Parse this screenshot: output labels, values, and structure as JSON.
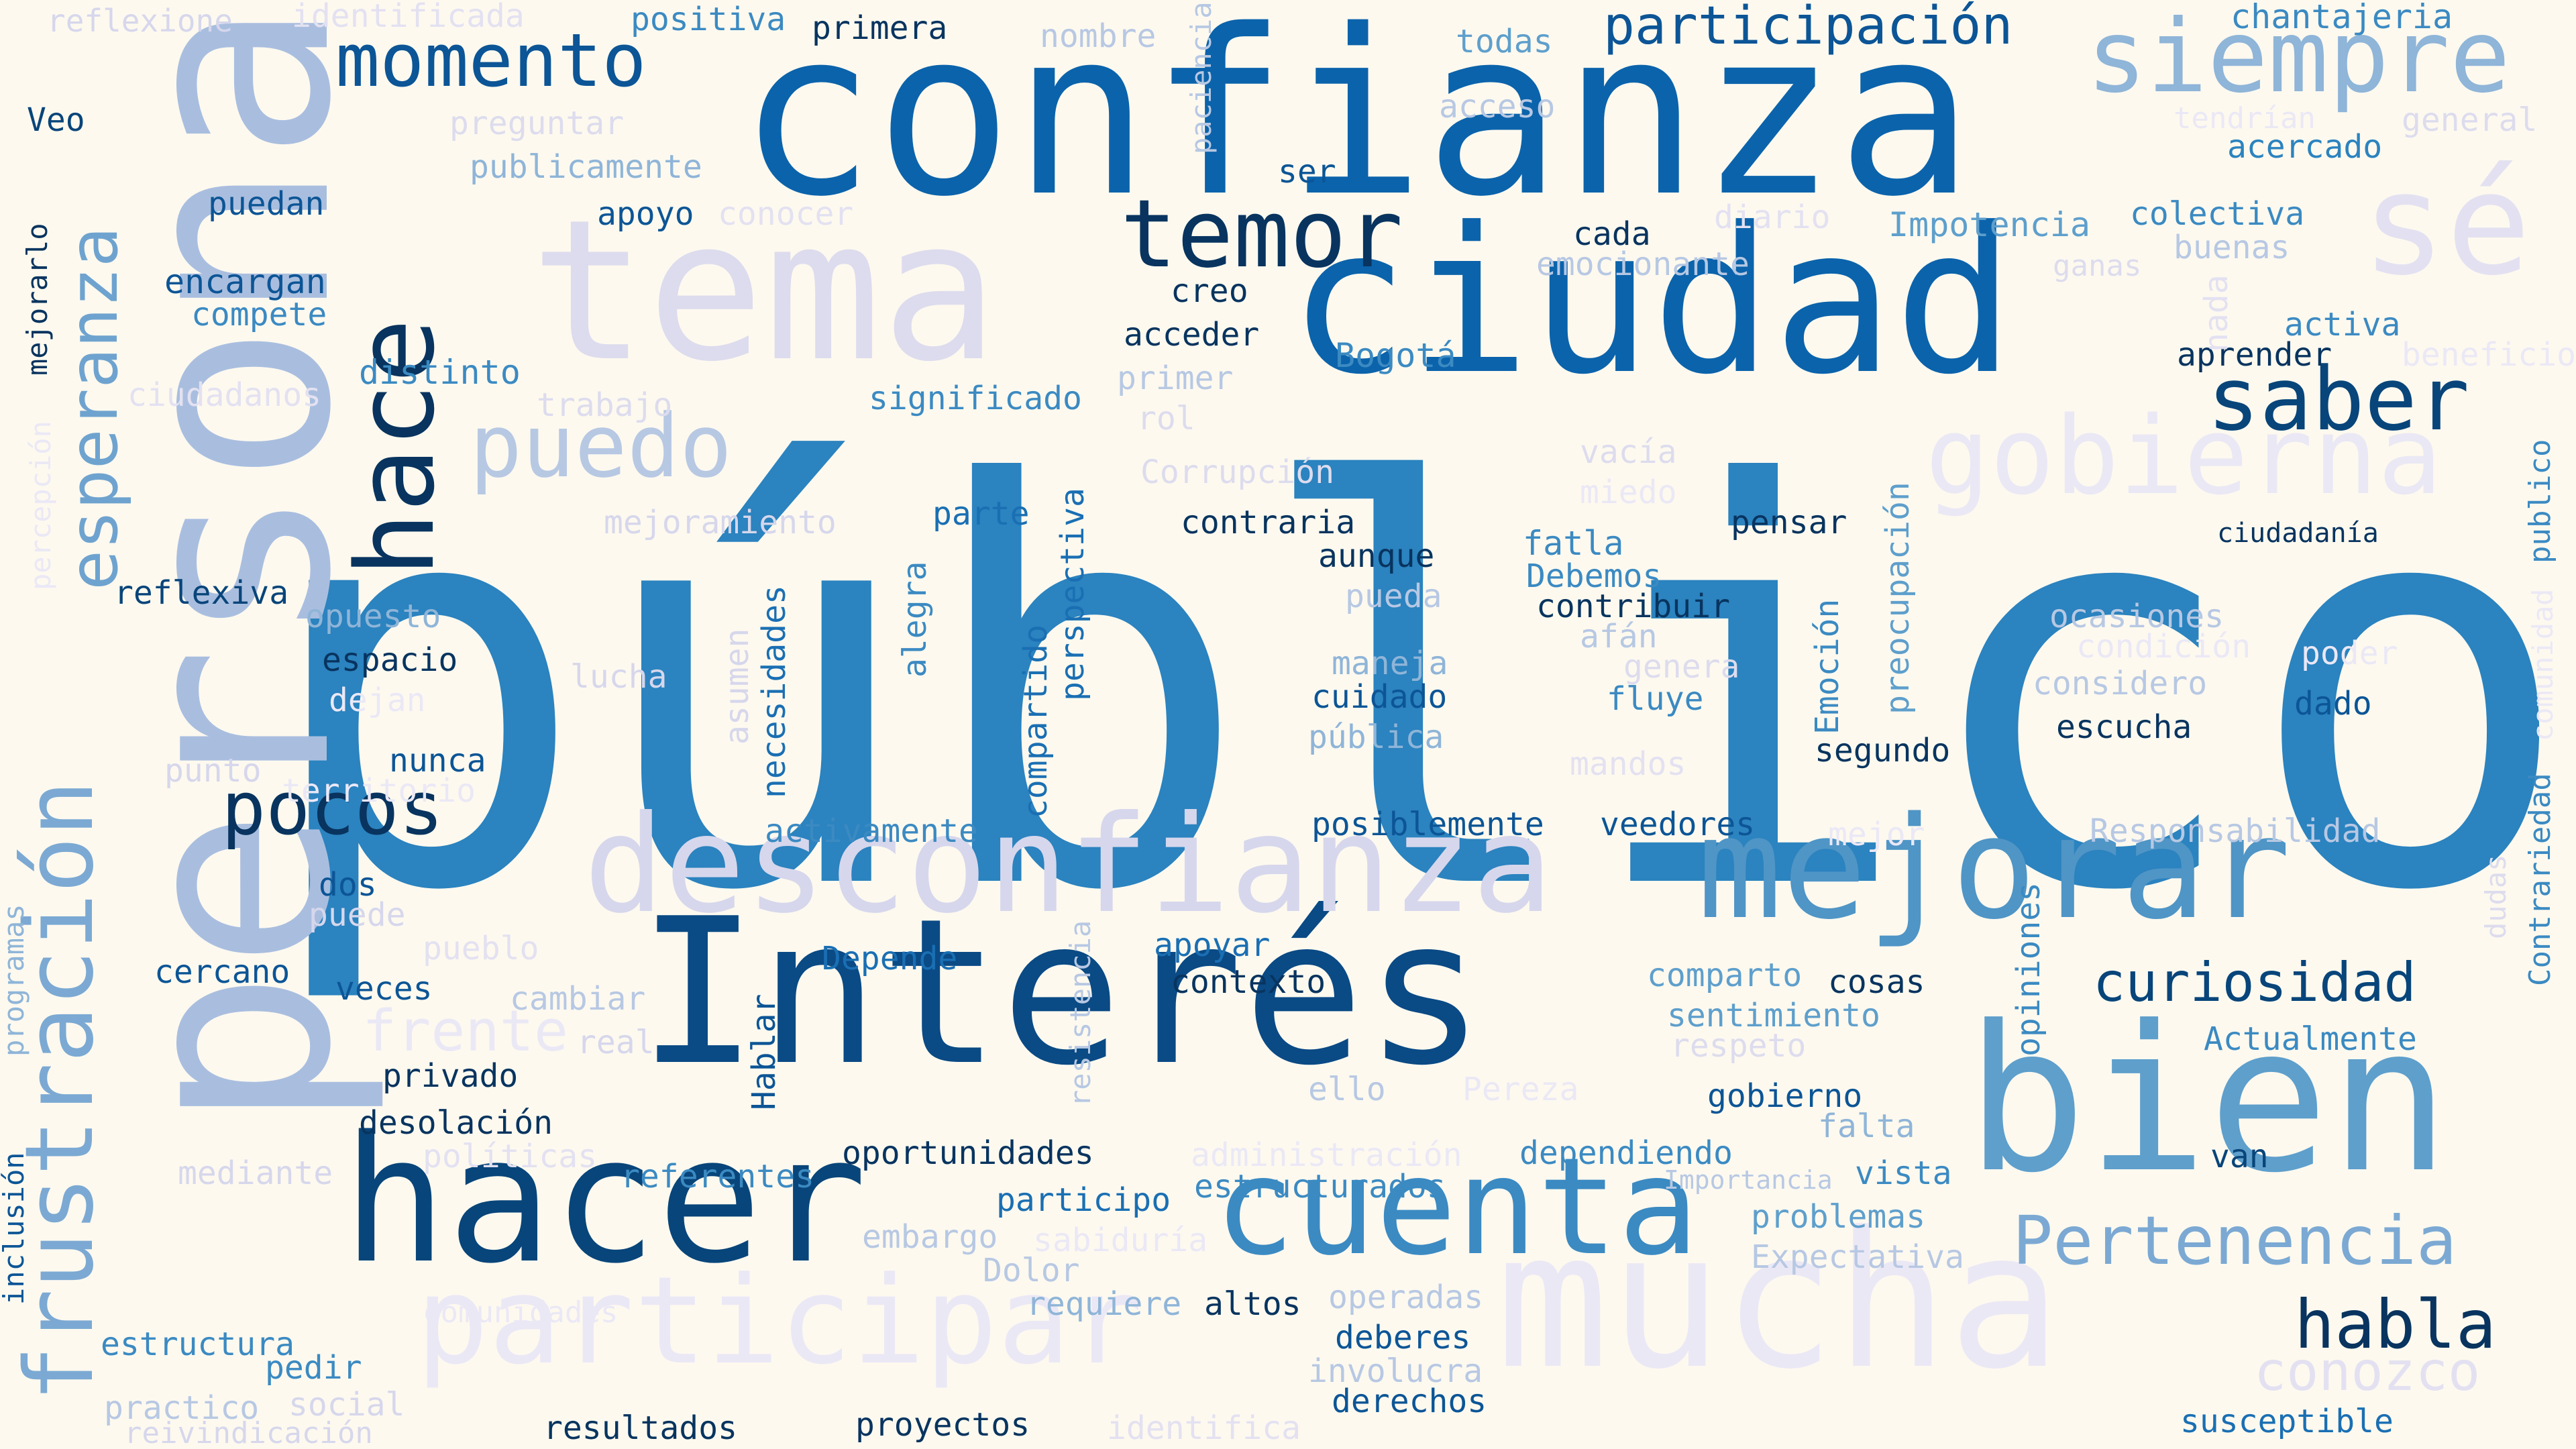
{
  "background": "#fdf9ef",
  "palette": {
    "darkest": "#08306b",
    "dark": "#08519c",
    "medium_dark": "#1a6fb3",
    "medium": "#2b83bf",
    "light_medium": "#5e9fcc",
    "light": "#8fb5d8",
    "lighter": "#aec6e2",
    "pale": "#d7dbee",
    "palest": "#ebeaf6"
  },
  "words": [
    {
      "text": "público",
      "color": "#2b83bf"
    },
    {
      "text": "persona",
      "color": "#a9bedf"
    },
    {
      "text": "confianza",
      "color": "#0b63ab"
    },
    {
      "text": "ciudad",
      "color": "#0b63ab"
    },
    {
      "text": "tema",
      "color": "#dddcee"
    },
    {
      "text": "Interés",
      "color": "#0a4a85"
    },
    {
      "text": "hacer",
      "color": "#08457a"
    },
    {
      "text": "bien",
      "color": "#5e9fcc"
    },
    {
      "text": "mucha",
      "color": "#ebe8f6"
    },
    {
      "text": "desconfianza",
      "color": "#d6d7ec"
    },
    {
      "text": "mejorar",
      "color": "#4f95c6"
    },
    {
      "text": "cuenta",
      "color": "#3b8ac2"
    },
    {
      "text": "participar",
      "color": "#ebe8f6"
    },
    {
      "text": "frustración",
      "color": "#7ba9d3"
    },
    {
      "text": "hace",
      "color": "#08345f"
    },
    {
      "text": "esperanza",
      "color": "#6fa3cf"
    },
    {
      "text": "siempre",
      "color": "#8fb5d8"
    },
    {
      "text": "sé",
      "color": "#e3e1f1"
    },
    {
      "text": "gobierna",
      "color": "#eae8f4"
    },
    {
      "text": "momento",
      "color": "#0c5596"
    },
    {
      "text": "temor",
      "color": "#08345f"
    },
    {
      "text": "puedo",
      "color": "#b7c8e3"
    },
    {
      "text": "saber",
      "color": "#08457a"
    },
    {
      "text": "pocos",
      "color": "#08345f"
    },
    {
      "text": "Pertenencia",
      "color": "#7ba9d3"
    },
    {
      "text": "curiosidad",
      "color": "#08457a"
    },
    {
      "text": "participación",
      "color": "#0c5596"
    },
    {
      "text": "habla",
      "color": "#08345f"
    },
    {
      "text": "conozco",
      "color": "#e3e1f1"
    },
    {
      "text": "frente",
      "color": "#ebe8f6"
    },
    {
      "text": "reflexione",
      "color": "#d6d7ec"
    },
    {
      "text": "identificada",
      "color": "#e3e1f1"
    },
    {
      "text": "positiva",
      "color": "#3b8ac2"
    },
    {
      "text": "primera",
      "color": "#08345f"
    },
    {
      "text": "nombre",
      "color": "#b7c8e3"
    },
    {
      "text": "paciencia",
      "color": "#b7c8e3"
    },
    {
      "text": "todas",
      "color": "#5e9fcc"
    },
    {
      "text": "chantajeria",
      "color": "#3b8ac2"
    },
    {
      "text": "Veo",
      "color": "#08457a"
    },
    {
      "text": "preguntar",
      "color": "#dddcee"
    },
    {
      "text": "acceso",
      "color": "#b7c8e3"
    },
    {
      "text": "tendrían",
      "color": "#ebe8f6"
    },
    {
      "text": "general",
      "color": "#dddcee"
    },
    {
      "text": "publicamente",
      "color": "#8fb5d8"
    },
    {
      "text": "ser",
      "color": "#0c5596"
    },
    {
      "text": "acercado",
      "color": "#2b83bf"
    },
    {
      "text": "mejorarlo",
      "color": "#08345f"
    },
    {
      "text": "puedan",
      "color": "#0c5596"
    },
    {
      "text": "apoyo",
      "color": "#0c5596"
    },
    {
      "text": "conocer",
      "color": "#e3e1f1"
    },
    {
      "text": "diario",
      "color": "#e3e1f1"
    },
    {
      "text": "Impotencia",
      "color": "#5e9fcc"
    },
    {
      "text": "colectiva",
      "color": "#3b8ac2"
    },
    {
      "text": "cada",
      "color": "#08345f"
    },
    {
      "text": "emocionante",
      "color": "#b7c8e3"
    },
    {
      "text": "buenas",
      "color": "#b7c8e3"
    },
    {
      "text": "encargan",
      "color": "#0c5596"
    },
    {
      "text": "compete",
      "color": "#3b8ac2"
    },
    {
      "text": "creo",
      "color": "#08345f"
    },
    {
      "text": "ganas",
      "color": "#dddcee"
    },
    {
      "text": "acceder",
      "color": "#08345f"
    },
    {
      "text": "activa",
      "color": "#3b8ac2"
    },
    {
      "text": "aprender",
      "color": "#08345f"
    },
    {
      "text": "beneficio",
      "color": "#ebe8f6"
    },
    {
      "text": "Bogotá",
      "color": "#3b8ac2"
    },
    {
      "text": "distinto",
      "color": "#3b8ac2"
    },
    {
      "text": "primer",
      "color": "#b7c8e3"
    },
    {
      "text": "ciudadanos",
      "color": "#e3e1f1"
    },
    {
      "text": "trabajo",
      "color": "#dddcee"
    },
    {
      "text": "significado",
      "color": "#3b8ac2"
    },
    {
      "text": "rol",
      "color": "#dddcee"
    },
    {
      "text": "nada",
      "color": "#e3e1f1"
    },
    {
      "text": "percepción",
      "color": "#ebe8f6"
    },
    {
      "text": "vacía",
      "color": "#dddcee"
    },
    {
      "text": "miedo",
      "color": "#ebe8f6"
    },
    {
      "text": "Corrupción",
      "color": "#dddcee"
    },
    {
      "text": "mejoramiento",
      "color": "#d6d7ec"
    },
    {
      "text": "parte",
      "color": "#1a6fb3"
    },
    {
      "text": "perspectiva",
      "color": "#1a6fb3"
    },
    {
      "text": "contraria",
      "color": "#08345f"
    },
    {
      "text": "fatla",
      "color": "#3b8ac2"
    },
    {
      "text": "pensar",
      "color": "#08345f"
    },
    {
      "text": "ciudadanía",
      "color": "#08345f"
    },
    {
      "text": "publico",
      "color": "#3b8ac2"
    },
    {
      "text": "aunque",
      "color": "#08345f"
    },
    {
      "text": "Debemos",
      "color": "#3b8ac2"
    },
    {
      "text": "preocupación",
      "color": "#5e9fcc"
    },
    {
      "text": "reflexiva",
      "color": "#08457a"
    },
    {
      "text": "opuesto",
      "color": "#8fb5d8"
    },
    {
      "text": "alegra",
      "color": "#3b8ac2"
    },
    {
      "text": "pueda",
      "color": "#b7c8e3"
    },
    {
      "text": "contribuir",
      "color": "#08345f"
    },
    {
      "text": "afán",
      "color": "#b7c8e3"
    },
    {
      "text": "ocasiones",
      "color": "#b7c8e3"
    },
    {
      "text": "condición",
      "color": "#ebe8f6"
    },
    {
      "text": "poder",
      "color": "#ebe8f6"
    },
    {
      "text": "comunidad",
      "color": "#ebe8f6"
    },
    {
      "text": "espacio",
      "color": "#08345f"
    },
    {
      "text": "asumen",
      "color": "#d6d7ec"
    },
    {
      "text": "maneja",
      "color": "#8fb5d8"
    },
    {
      "text": "genera",
      "color": "#dddcee"
    },
    {
      "text": "Emoción",
      "color": "#3b8ac2"
    },
    {
      "text": "considero",
      "color": "#b7c8e3"
    },
    {
      "text": "dado",
      "color": "#0c5596"
    },
    {
      "text": "lucha",
      "color": "#d6d7ec"
    },
    {
      "text": "dejan",
      "color": "#ebe8f6"
    },
    {
      "text": "compartido",
      "color": "#1a6fb3"
    },
    {
      "text": "cuidado",
      "color": "#0c5596"
    },
    {
      "text": "fluye",
      "color": "#3b8ac2"
    },
    {
      "text": "escucha",
      "color": "#08345f"
    },
    {
      "text": "necesidades",
      "color": "#1a6fb3"
    },
    {
      "text": "pública",
      "color": "#8fb5d8"
    },
    {
      "text": "segundo",
      "color": "#08345f"
    },
    {
      "text": "Contrariedad",
      "color": "#3b8ac2"
    },
    {
      "text": "nunca",
      "color": "#0c5596"
    },
    {
      "text": "mandos",
      "color": "#e3e1f1"
    },
    {
      "text": "punto",
      "color": "#d6d7ec"
    },
    {
      "text": "territorio",
      "color": "#ebe8f6"
    },
    {
      "text": "dudas",
      "color": "#dddcee"
    },
    {
      "text": "activamente",
      "color": "#3b8ac2"
    },
    {
      "text": "posiblemente",
      "color": "#0c5596"
    },
    {
      "text": "veedores",
      "color": "#0c5596"
    },
    {
      "text": "Responsabilidad",
      "color": "#b7c8e3"
    },
    {
      "text": "mejor",
      "color": "#ebe8f6"
    },
    {
      "text": "programas",
      "color": "#8fb5d8"
    },
    {
      "text": "dos",
      "color": "#0c5596"
    },
    {
      "text": "puede",
      "color": "#d6d7ec"
    },
    {
      "text": "resistencia",
      "color": "#b7c8e3"
    },
    {
      "text": "opiniones",
      "color": "#3b8ac2"
    },
    {
      "text": "Depende",
      "color": "#1a6fb3"
    },
    {
      "text": "pueblo",
      "color": "#e3e1f1"
    },
    {
      "text": "apoyar",
      "color": "#1a6fb3"
    },
    {
      "text": "cercano",
      "color": "#0c5596"
    },
    {
      "text": "veces",
      "color": "#0c5596"
    },
    {
      "text": "cambiar",
      "color": "#b7c8e3"
    },
    {
      "text": "contexto",
      "color": "#08345f"
    },
    {
      "text": "comparto",
      "color": "#5e9fcc"
    },
    {
      "text": "cosas",
      "color": "#08345f"
    },
    {
      "text": "Actualmente",
      "color": "#3b8ac2"
    },
    {
      "text": "real",
      "color": "#d6d7ec"
    },
    {
      "text": "sentimiento",
      "color": "#5e9fcc"
    },
    {
      "text": "respeto",
      "color": "#dddcee"
    },
    {
      "text": "privado",
      "color": "#08345f"
    },
    {
      "text": "Hablar",
      "color": "#0c5596"
    },
    {
      "text": "ello",
      "color": "#b7c8e3"
    },
    {
      "text": "Pereza",
      "color": "#ebe8f6"
    },
    {
      "text": "gobierno",
      "color": "#0c5596"
    },
    {
      "text": "inclusión",
      "color": "#0c5596"
    },
    {
      "text": "desolación",
      "color": "#08345f"
    },
    {
      "text": "falta",
      "color": "#8fb5d8"
    },
    {
      "text": "oportunidades",
      "color": "#08345f"
    },
    {
      "text": "políticas",
      "color": "#e3e1f1"
    },
    {
      "text": "administración",
      "color": "#ebe8f6"
    },
    {
      "text": "dependiendo",
      "color": "#3b8ac2"
    },
    {
      "text": "mediante",
      "color": "#d6d7ec"
    },
    {
      "text": "referentes",
      "color": "#3b8ac2"
    },
    {
      "text": "Importancia",
      "color": "#b7c8e3"
    },
    {
      "text": "vista",
      "color": "#3b8ac2"
    },
    {
      "text": "van",
      "color": "#08457a"
    },
    {
      "text": "participo",
      "color": "#1a6fb3"
    },
    {
      "text": "estructurados",
      "color": "#3b8ac2"
    },
    {
      "text": "problemas",
      "color": "#5e9fcc"
    },
    {
      "text": "embargo",
      "color": "#b7c8e3"
    },
    {
      "text": "sabiduría",
      "color": "#ebe8f6"
    },
    {
      "text": "Expectativa",
      "color": "#b7c8e3"
    },
    {
      "text": "Dolor",
      "color": "#b7c8e3"
    },
    {
      "text": "comunidades",
      "color": "#ebe8f6"
    },
    {
      "text": "requiere",
      "color": "#8fb5d8"
    },
    {
      "text": "altos",
      "color": "#08345f"
    },
    {
      "text": "operadas",
      "color": "#b7c8e3"
    },
    {
      "text": "estructura",
      "color": "#3b8ac2"
    },
    {
      "text": "deberes",
      "color": "#0c5596"
    },
    {
      "text": "pedir",
      "color": "#3b8ac2"
    },
    {
      "text": "involucra",
      "color": "#b7c8e3"
    },
    {
      "text": "practico",
      "color": "#b7c8e3"
    },
    {
      "text": "social",
      "color": "#d6d7ec"
    },
    {
      "text": "derechos",
      "color": "#0c5596"
    },
    {
      "text": "reivindicación",
      "color": "#d6d7ec"
    },
    {
      "text": "resultados",
      "color": "#08345f"
    },
    {
      "text": "proyectos",
      "color": "#08345f"
    },
    {
      "text": "identifica",
      "color": "#e3e1f1"
    },
    {
      "text": "susceptible",
      "color": "#1a6fb3"
    }
  ]
}
